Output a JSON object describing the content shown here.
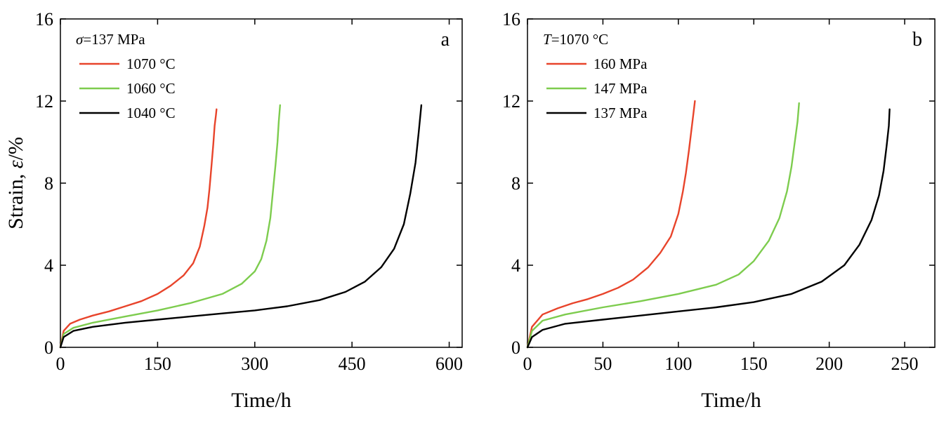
{
  "chart_data": [
    {
      "type": "line",
      "panel_label": "a",
      "xlabel": "Time/h",
      "ylabel": {
        "prefix": "Strain, ",
        "symbol": "ε",
        "suffix": "/%"
      },
      "xlim": [
        0,
        620
      ],
      "ylim": [
        0,
        16
      ],
      "xticks": [
        0,
        150,
        300,
        450,
        600
      ],
      "yticks": [
        0,
        4,
        8,
        12,
        16
      ],
      "grid": false,
      "legend": {
        "placement": "top-left",
        "header": {
          "symbol": "σ",
          "text": "=137 MPa"
        }
      },
      "series": [
        {
          "name": "1070 °C",
          "color": "#e8442b",
          "x": [
            0,
            5,
            15,
            30,
            50,
            75,
            100,
            125,
            150,
            170,
            190,
            205,
            215,
            222,
            227,
            230,
            233,
            236,
            238,
            240,
            241
          ],
          "y": [
            0,
            0.8,
            1.15,
            1.35,
            1.55,
            1.75,
            2.0,
            2.25,
            2.6,
            3.0,
            3.5,
            4.1,
            4.9,
            5.9,
            6.8,
            7.7,
            8.8,
            9.9,
            10.8,
            11.3,
            11.6
          ]
        },
        {
          "name": "1060 °C",
          "color": "#7dcc4e",
          "x": [
            0,
            5,
            20,
            50,
            100,
            150,
            200,
            250,
            280,
            300,
            310,
            318,
            324,
            328,
            332,
            335,
            337,
            339
          ],
          "y": [
            0,
            0.65,
            0.95,
            1.2,
            1.5,
            1.8,
            2.15,
            2.6,
            3.1,
            3.7,
            4.3,
            5.2,
            6.3,
            7.6,
            8.9,
            10.0,
            11.0,
            11.8
          ]
        },
        {
          "name": "1040 °C",
          "color": "#000000",
          "x": [
            0,
            5,
            20,
            50,
            100,
            150,
            200,
            250,
            300,
            350,
            400,
            440,
            470,
            495,
            515,
            530,
            540,
            548,
            553,
            557
          ],
          "y": [
            0,
            0.5,
            0.8,
            1.0,
            1.2,
            1.35,
            1.5,
            1.65,
            1.8,
            2.0,
            2.3,
            2.7,
            3.2,
            3.9,
            4.8,
            6.0,
            7.5,
            9.0,
            10.5,
            11.8
          ]
        }
      ]
    },
    {
      "type": "line",
      "panel_label": "b",
      "xlabel": "Time/h",
      "ylabel": null,
      "xlim": [
        0,
        270
      ],
      "ylim": [
        0,
        16
      ],
      "xticks": [
        0,
        50,
        100,
        150,
        200,
        250
      ],
      "yticks": [
        0,
        4,
        8,
        12,
        16
      ],
      "grid": false,
      "legend": {
        "placement": "top-left",
        "header": {
          "symbol": "T",
          "text": "=1070 °C"
        }
      },
      "series": [
        {
          "name": "160 MPa",
          "color": "#e8442b",
          "x": [
            0,
            3,
            10,
            20,
            30,
            40,
            50,
            60,
            70,
            80,
            88,
            95,
            100,
            103,
            105,
            107,
            108.5,
            110,
            111
          ],
          "y": [
            0,
            1.0,
            1.6,
            1.9,
            2.15,
            2.35,
            2.6,
            2.9,
            3.3,
            3.9,
            4.6,
            5.4,
            6.5,
            7.6,
            8.5,
            9.6,
            10.5,
            11.4,
            12.0
          ]
        },
        {
          "name": "147 MPa",
          "color": "#7dcc4e",
          "x": [
            0,
            3,
            10,
            25,
            50,
            75,
            100,
            125,
            140,
            150,
            160,
            167,
            172,
            175,
            177,
            179,
            180
          ],
          "y": [
            0,
            0.8,
            1.3,
            1.6,
            1.95,
            2.25,
            2.6,
            3.05,
            3.55,
            4.2,
            5.2,
            6.3,
            7.6,
            8.8,
            9.9,
            11.0,
            11.9
          ]
        },
        {
          "name": "137 MPa",
          "color": "#000000",
          "x": [
            0,
            3,
            10,
            25,
            50,
            75,
            100,
            125,
            150,
            175,
            195,
            210,
            220,
            228,
            233,
            236,
            238,
            239.5,
            240
          ],
          "y": [
            0,
            0.5,
            0.85,
            1.15,
            1.35,
            1.55,
            1.75,
            1.95,
            2.2,
            2.6,
            3.2,
            4.0,
            5.0,
            6.2,
            7.4,
            8.6,
            9.8,
            10.8,
            11.6
          ]
        }
      ]
    }
  ]
}
